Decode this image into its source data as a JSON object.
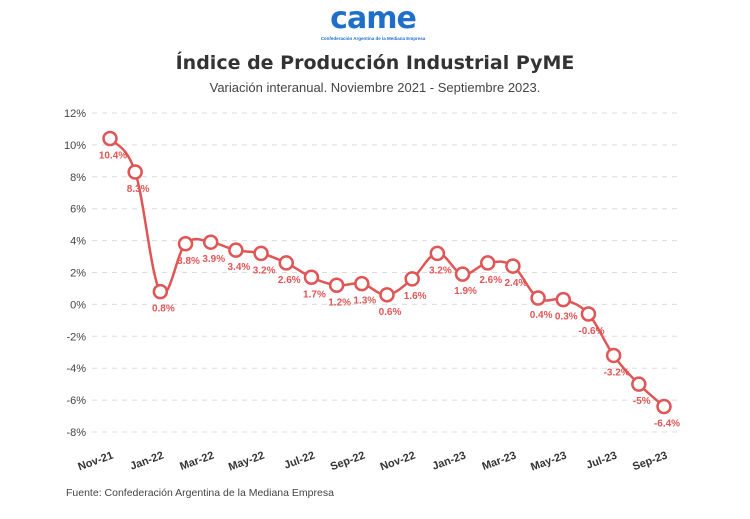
{
  "logo": {
    "text": "came",
    "subtitle": "Confederación Argentina de la Mediana Empresa",
    "color": "#1f6fc9"
  },
  "chart_data": {
    "type": "line",
    "title": "Índice de Producción Industrial PyME",
    "subtitle": "Variación interanual. Noviembre 2021 - Septiembre 2023.",
    "categories": [
      "Nov-21",
      "Dec-21",
      "Jan-22",
      "Feb-22",
      "Mar-22",
      "Apr-22",
      "May-22",
      "Jun-22",
      "Jul-22",
      "Aug-22",
      "Sep-22",
      "Oct-22",
      "Nov-22",
      "Dec-22",
      "Jan-23",
      "Feb-23",
      "Mar-23",
      "Apr-23",
      "May-23",
      "Jun-23",
      "Jul-23",
      "Aug-23",
      "Sep-23"
    ],
    "tick_labels": [
      "Nov-21",
      "Jan-22",
      "Mar-22",
      "May-22",
      "Jul-22",
      "Sep-22",
      "Nov-22",
      "Jan-23",
      "Mar-23",
      "May-23",
      "Jul-23",
      "Sep-23"
    ],
    "values": [
      10.4,
      8.3,
      0.8,
      3.8,
      3.9,
      3.4,
      3.2,
      2.6,
      1.7,
      1.2,
      1.3,
      0.6,
      1.6,
      3.2,
      1.9,
      2.6,
      2.4,
      0.4,
      0.3,
      -0.6,
      -3.2,
      -5,
      -6.4
    ],
    "data_labels": [
      "10.4%",
      "8.3%",
      "0.8%",
      "3.8%",
      "3.9%",
      "3.4%",
      "3.2%",
      "2.6%",
      "1.7%",
      "1.2%",
      "1.3%",
      "0.6%",
      "1.6%",
      "3.2%",
      "1.9%",
      "2.6%",
      "2.4%",
      "0.4%",
      "0.3%",
      "-0.6%",
      "-3.2%",
      "-5%",
      "-6.4%"
    ],
    "ylim": [
      -8,
      12
    ],
    "yticks": [
      "12%",
      "10%",
      "8%",
      "6%",
      "4%",
      "2%",
      "0%",
      "-2%",
      "-4%",
      "-6%",
      "-8%"
    ],
    "grid": true,
    "line_color": "#e05555",
    "xlabel": "",
    "ylabel": ""
  },
  "source": "Fuente: Confederación Argentina de la Mediana Empresa"
}
